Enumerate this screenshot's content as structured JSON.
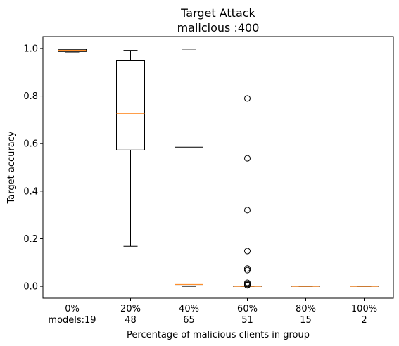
{
  "chart_data": {
    "type": "boxplot",
    "title": "Target Attack",
    "subtitle": "malicious :400",
    "xlabel": "Percentage of malicious clients in group",
    "ylabel": "Target accuracy",
    "ylim": [
      -0.05,
      1.05
    ],
    "yticks": [
      "0.0",
      "0.2",
      "0.4",
      "0.6",
      "0.8",
      "1.0"
    ],
    "grid": false,
    "categories": [
      "0%",
      "20%",
      "40%",
      "60%",
      "80%",
      "100%"
    ],
    "model_counts": [
      "models:19",
      "48",
      "65",
      "51",
      "15",
      "2"
    ],
    "boxes": [
      {
        "whisker_low": 0.982,
        "q1": 0.987,
        "median": 0.992,
        "q3": 0.996,
        "whisker_high": 0.997,
        "outliers": []
      },
      {
        "whisker_low": 0.168,
        "q1": 0.573,
        "median": 0.727,
        "q3": 0.948,
        "whisker_high": 0.992,
        "outliers": []
      },
      {
        "whisker_low": 0.0,
        "q1": 0.002,
        "median": 0.008,
        "q3": 0.585,
        "whisker_high": 0.997,
        "outliers": []
      },
      {
        "whisker_low": 0.0,
        "q1": 0.0,
        "median": 0.0,
        "q3": 0.0,
        "whisker_high": 0.0,
        "outliers": [
          0.79,
          0.538,
          0.32,
          0.148,
          0.075,
          0.068,
          0.015,
          0.01,
          0.006,
          0.004
        ]
      },
      {
        "whisker_low": 0.0,
        "q1": 0.0,
        "median": 0.0,
        "q3": 0.0,
        "whisker_high": 0.0,
        "outliers": []
      },
      {
        "whisker_low": 0.0,
        "q1": 0.0,
        "median": 0.0,
        "q3": 0.0,
        "whisker_high": 0.0,
        "outliers": []
      }
    ],
    "colors": {
      "box": "#000000",
      "median": "#ff7f0e",
      "outlier": "#000000",
      "axes": "#000000"
    }
  }
}
